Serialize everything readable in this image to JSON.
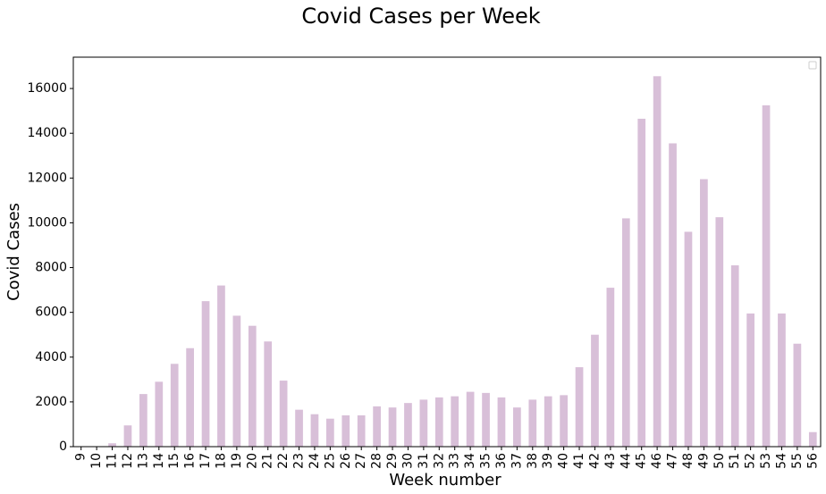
{
  "chart_data": {
    "type": "bar",
    "title": "Covid Cases per Week",
    "xlabel": "Week number",
    "ylabel": "Covid Cases",
    "ylim": [
      0,
      17400
    ],
    "yticks": [
      0,
      2000,
      4000,
      6000,
      8000,
      10000,
      12000,
      14000,
      16000
    ],
    "categories": [
      "9",
      "10",
      "11",
      "12",
      "13",
      "14",
      "15",
      "16",
      "17",
      "18",
      "19",
      "20",
      "21",
      "22",
      "23",
      "24",
      "25",
      "26",
      "27",
      "28",
      "29",
      "30",
      "31",
      "32",
      "33",
      "34",
      "35",
      "36",
      "37",
      "38",
      "39",
      "40",
      "41",
      "42",
      "43",
      "44",
      "45",
      "46",
      "47",
      "48",
      "49",
      "50",
      "51",
      "52",
      "53",
      "54",
      "55",
      "56"
    ],
    "values": [
      0,
      0,
      150,
      950,
      2350,
      2900,
      3700,
      4400,
      6500,
      7200,
      5850,
      5400,
      4700,
      2950,
      1650,
      1450,
      1250,
      1400,
      1400,
      1800,
      1750,
      1950,
      2100,
      2200,
      2250,
      2450,
      2400,
      2200,
      1750,
      2100,
      2250,
      2300,
      3550,
      5000,
      7100,
      10200,
      14650,
      16550,
      13550,
      9600,
      11950,
      10250,
      8100,
      5950,
      15250,
      5950,
      4600,
      650
    ],
    "bar_color": "#d8bfd8",
    "legend": "top-right (empty)",
    "grid": false
  }
}
